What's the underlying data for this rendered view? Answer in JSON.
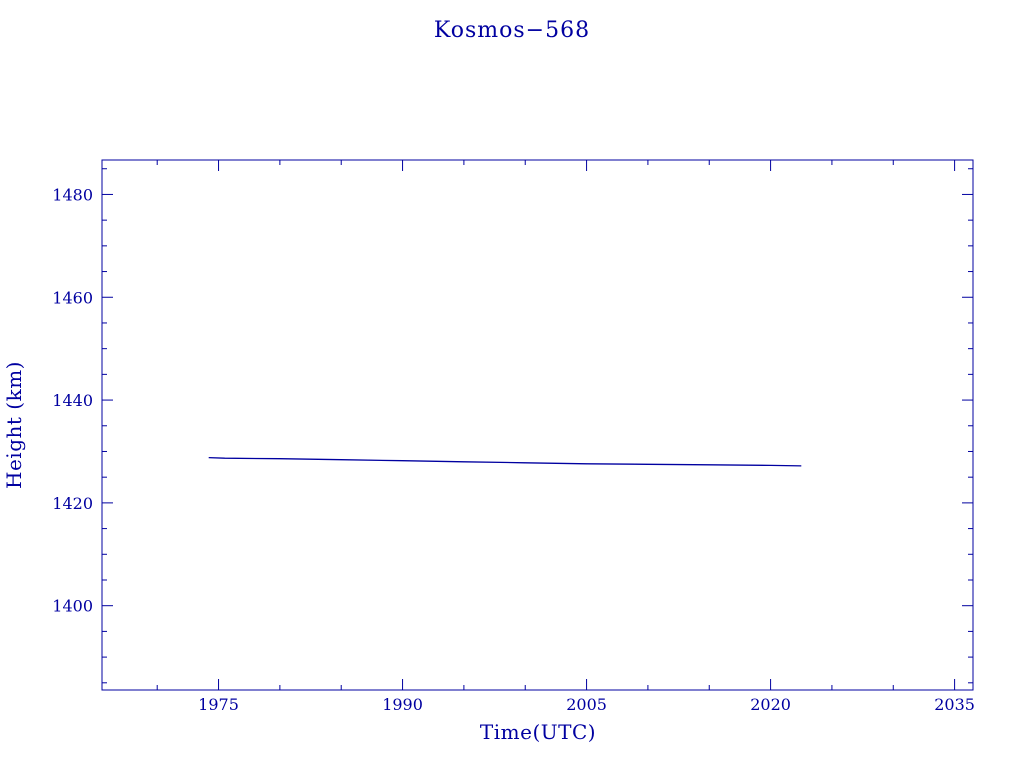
{
  "colors": {
    "axis": "#0000a0",
    "series": "#0000a0",
    "background": "#ffffff"
  },
  "chart_data": {
    "type": "line",
    "title": "Kosmos−568",
    "xlabel": "Time(UTC)",
    "ylabel": "Height (km)",
    "xlim": [
      1965.5,
      2036.5
    ],
    "ylim": [
      1383.6,
      1486.7
    ],
    "x_ticks": [
      1975,
      1990,
      2005,
      2020,
      2035
    ],
    "x_tick_labels": [
      "1975",
      "1990",
      "2005",
      "2020",
      "2035"
    ],
    "y_ticks": [
      1400,
      1420,
      1440,
      1460,
      1480
    ],
    "y_tick_labels": [
      "1400",
      "1420",
      "1440",
      "1460",
      "1480"
    ],
    "x_minor_step": 5,
    "y_minor_step": 5,
    "grid": false,
    "legend": "none",
    "series": [
      {
        "x": [
          1974.2,
          1975.5,
          1980,
          1985,
          1990,
          1995,
          2000,
          2005,
          2010,
          2015,
          2020,
          2022.5
        ],
        "y": [
          1428.8,
          1428.7,
          1428.6,
          1428.4,
          1428.2,
          1428.0,
          1427.8,
          1427.6,
          1427.5,
          1427.4,
          1427.3,
          1427.2
        ]
      }
    ]
  }
}
